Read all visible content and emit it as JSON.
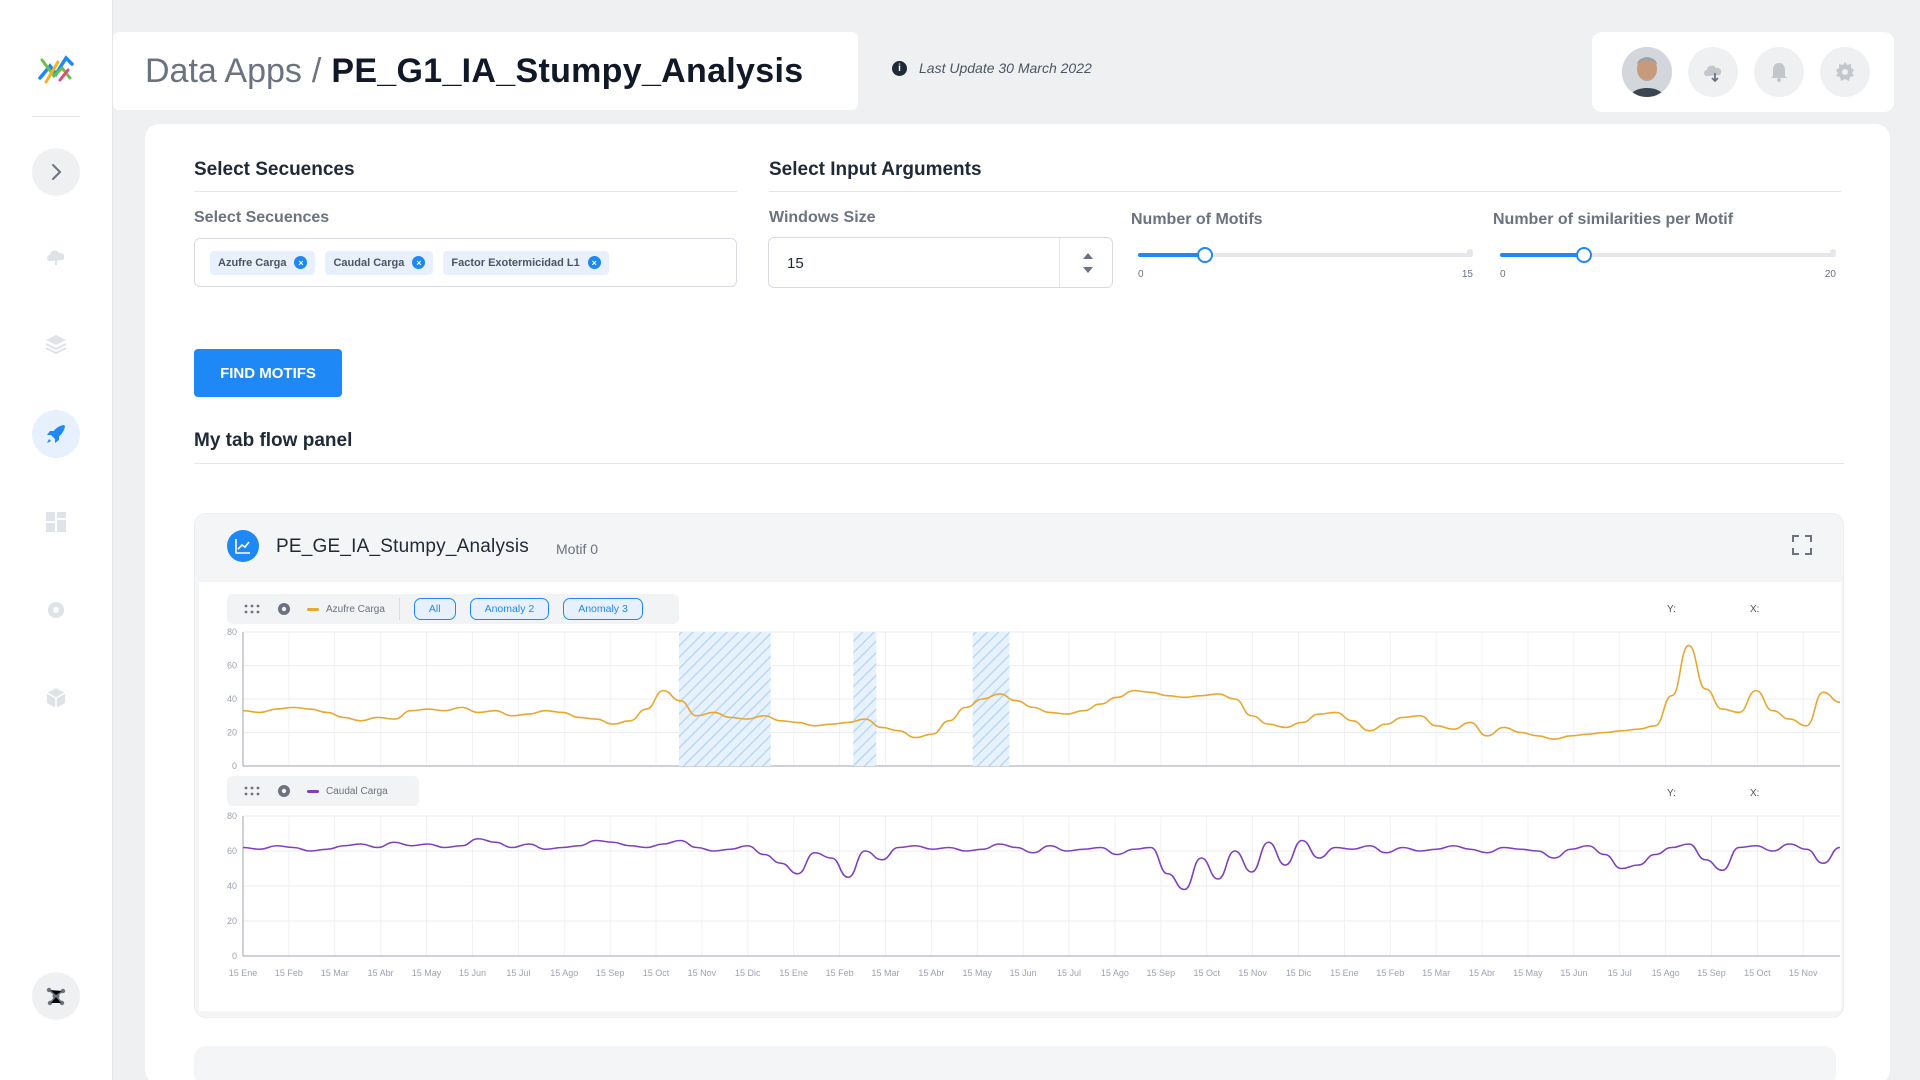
{
  "header": {
    "title_prefix": "Data Apps",
    "title_separator": "/",
    "title_main": "PE_G1_IA_Stumpy_Analysis",
    "last_update": "Last Update 30 March 2022",
    "info_glyph": "i"
  },
  "sidebar": {
    "items": [
      "logo",
      "expand-chevron-icon",
      "cloud-icon",
      "layers-icon",
      "rocket-icon",
      "dashboard-grid-icon",
      "settings-cog-icon",
      "cube-icon",
      "network-icon"
    ],
    "active_item": "rocket-icon"
  },
  "select_sequences": {
    "section_title": "Select Secuences",
    "label": "Select Secuences",
    "chips": [
      "Azufre Carga",
      "Caudal Carga",
      "Factor Exotermicidad L1"
    ],
    "chip_remove_glyph": "×"
  },
  "input_arguments": {
    "section_title": "Select Input Arguments",
    "windows_size": {
      "label": "Windows Size",
      "value": "15"
    },
    "motifs": {
      "label": "Number of Motifs",
      "min": "0",
      "max": "15",
      "value": 3
    },
    "similarities": {
      "label": "Number of similarities per Motif",
      "min": "0",
      "max": "20",
      "value": 5
    }
  },
  "find_button": "FIND MOTIFS",
  "tab_panel_title": "My tab flow panel",
  "chart_panel": {
    "title": "PE_GE_IA_Stumpy_Analysis",
    "subtitle": "Motif 0",
    "toolbar1": {
      "legend": "Azufre Carga",
      "pills": [
        "All",
        "Anomaly 2",
        "Anomaly 3"
      ],
      "y_label": "Y:",
      "x_label": "X:"
    },
    "toolbar2": {
      "legend": "Caudal Carga",
      "y_label": "Y:",
      "x_label": "X:"
    }
  },
  "colors": {
    "accent": "#1e88f6",
    "series1": "#e8a830",
    "series2": "#7f3fbf"
  },
  "chart_data": [
    {
      "type": "line",
      "series": [
        {
          "name": "Azufre Carga",
          "values": [
            33,
            32,
            34,
            35,
            34,
            32,
            29,
            27,
            29,
            28,
            33,
            34,
            33,
            35,
            32,
            33,
            30,
            31,
            33,
            32,
            29,
            28,
            25,
            27,
            34,
            45,
            39,
            30,
            32,
            29,
            28,
            30,
            27,
            26,
            24,
            25,
            26,
            28,
            23,
            21,
            17,
            19,
            27,
            35,
            40,
            43,
            39,
            35,
            32,
            31,
            33,
            37,
            41,
            45,
            44,
            42,
            41,
            42,
            43,
            40,
            30,
            25,
            23,
            26,
            31,
            32,
            27,
            21,
            25,
            29,
            30,
            24,
            22,
            26,
            18,
            23,
            20,
            18,
            16,
            18,
            19,
            20,
            21,
            22,
            24,
            42,
            72,
            46,
            34,
            32,
            45,
            33,
            28,
            24,
            44,
            38
          ]
        }
      ],
      "ylim": [
        0,
        80
      ],
      "yticks": [
        "0",
        "20",
        "40",
        "60",
        "80"
      ],
      "highlight_regions": [
        [
          9.5,
          11.5
        ],
        [
          13.3,
          13.8
        ],
        [
          15.9,
          16.7
        ]
      ]
    },
    {
      "type": "line",
      "series": [
        {
          "name": "Caudal Carga",
          "values": [
            62,
            61,
            63,
            62,
            60,
            61,
            63,
            64,
            62,
            65,
            63,
            64,
            62,
            63,
            67,
            65,
            62,
            64,
            61,
            62,
            63,
            66,
            65,
            63,
            62,
            64,
            66,
            62,
            60,
            61,
            63,
            58,
            53,
            47,
            59,
            56,
            45,
            60,
            55,
            62,
            63,
            61,
            62,
            60,
            61,
            64,
            62,
            59,
            63,
            60,
            61,
            62,
            58,
            61,
            62,
            47,
            38,
            56,
            44,
            60,
            48,
            65,
            52,
            66,
            56,
            62,
            61,
            63,
            59,
            62,
            60,
            61,
            63,
            61,
            59,
            62,
            61,
            60,
            56,
            61,
            63,
            58,
            50,
            52,
            58,
            62,
            64,
            55,
            49,
            62,
            63,
            60,
            64,
            61,
            53,
            62
          ]
        }
      ],
      "ylim": [
        0,
        80
      ],
      "yticks": [
        "0",
        "20",
        "40",
        "60",
        "80"
      ]
    }
  ],
  "x_ticks": [
    "15 Ene",
    "15 Feb",
    "15 Mar",
    "15 Abr",
    "15 May",
    "15 Jun",
    "15 Jul",
    "15 Ago",
    "15 Sep",
    "15 Oct",
    "15 Nov",
    "15 Dic",
    "15 Ene",
    "15 Feb",
    "15 Mar",
    "15 Abr",
    "15 May",
    "15 Jun",
    "15 Jul",
    "15 Ago",
    "15 Sep",
    "15 Oct",
    "15 Nov",
    "15 Dic",
    "15 Ene",
    "15 Feb",
    "15 Mar",
    "15 Abr",
    "15 May",
    "15 Jun",
    "15 Jul",
    "15 Ago",
    "15 Sep",
    "15 Oct",
    "15 Nov"
  ]
}
